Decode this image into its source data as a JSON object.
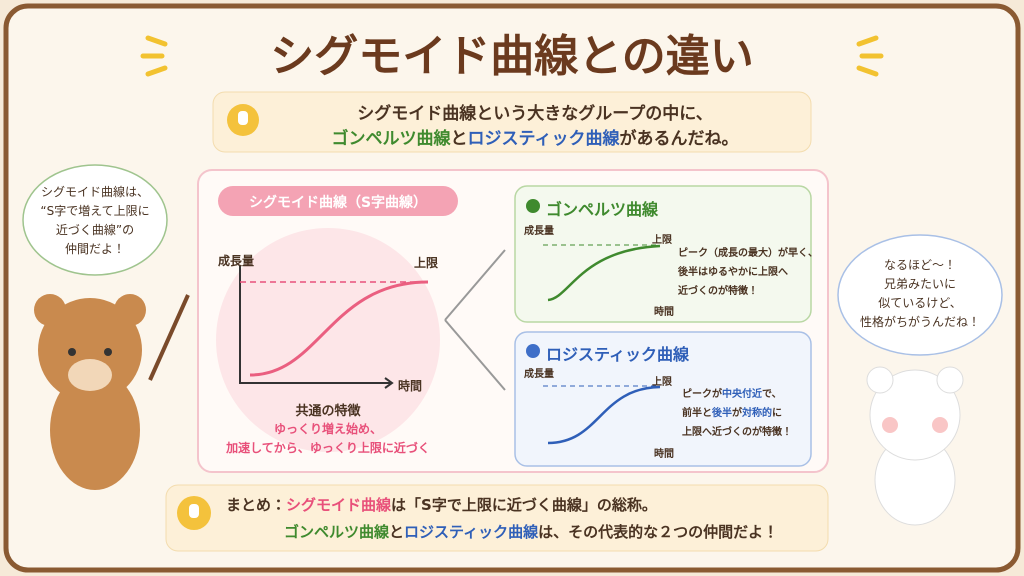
{
  "title": "シグモイド曲線との違い",
  "intro": {
    "line1": "シグモイド曲線という大きなグループの中に、",
    "line2": [
      "ゴンペルツ曲線",
      "と",
      "ロジスティック曲線",
      "があるんだね。"
    ]
  },
  "left_bubble": [
    "シグモイド曲線は、",
    "“S字で増えて上限に",
    "近づく曲線”の",
    "仲間だよ！"
  ],
  "right_bubble": [
    "なるほど〜！",
    "兄弟みたいに",
    "似ているけど、",
    "性格がちがうんだね！"
  ],
  "sigmoid": {
    "label": "シグモイド曲線（S字曲線）",
    "y_axis": "成長量",
    "limit": "上限",
    "x_axis": "時間",
    "feature_title": "共通の特徴",
    "feature": [
      "ゆっくり増え始め、",
      "加速してから、ゆっくり上限に近づく"
    ]
  },
  "gompertz": {
    "title": "ゴンペルツ曲線",
    "y_axis": "成長量",
    "limit": "上限",
    "x_axis": "時間",
    "note": [
      "ピーク（成長の最大）が早く、",
      "後半はゆるやかに上限へ",
      "近づくのが特徴！"
    ]
  },
  "logistic": {
    "title": "ロジスティック曲線",
    "y_axis": "成長量",
    "limit": "上限",
    "x_axis": "時間",
    "note": [
      [
        "ピークが",
        "中央付近",
        "で、"
      ],
      [
        "前半",
        "と",
        "後半",
        "が",
        "対称的",
        "に"
      ],
      [
        "上限へ近づくのが特徴！"
      ]
    ]
  },
  "summary": {
    "line1": [
      "まとめ：",
      "シグモイド曲線",
      "は「S字で上限に近づく曲線」の総称。"
    ],
    "line2": [
      "ゴンペルツ曲線",
      "と",
      "ロジスティック曲線",
      "は、その代表的な２つの仲間だよ！"
    ]
  }
}
